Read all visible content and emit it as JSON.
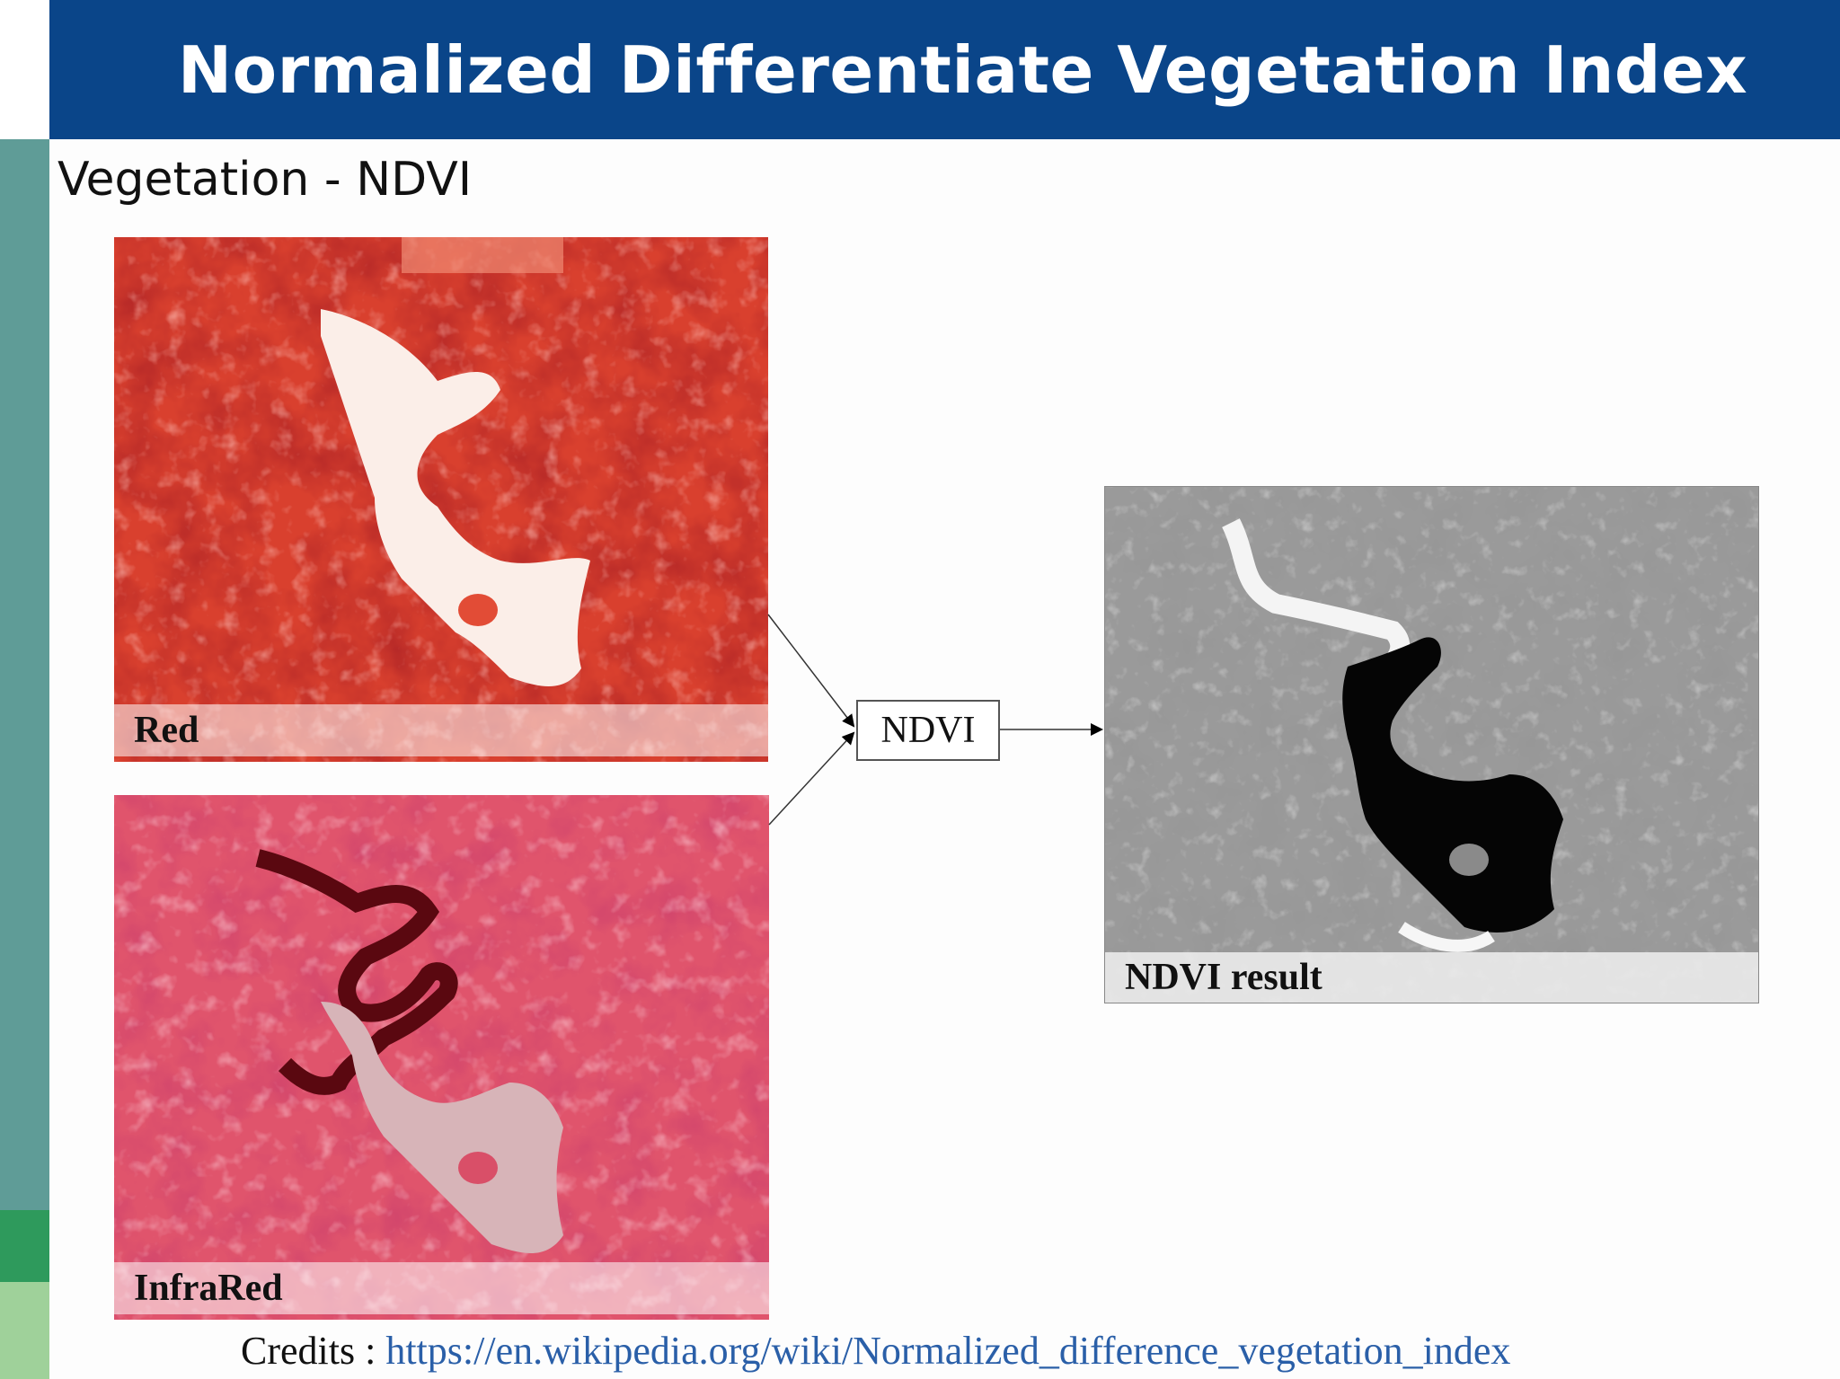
{
  "slide": {
    "title": "Normalized Differentiate Vegetation Index",
    "subtitle": "Vegetation - NDVI"
  },
  "panels": {
    "red": {
      "label": "Red"
    },
    "infrared": {
      "label": "InfraRed"
    },
    "result": {
      "label": "NDVI result"
    }
  },
  "process_node": {
    "label": "NDVI"
  },
  "credits": {
    "prefix": "Credits : ",
    "link_text": "https://en.wikipedia.org/wiki/Normalized_difference_vegetation_index"
  },
  "colors": {
    "banner": "#0a4589",
    "left_bar": "#5f9c97",
    "left_bar_accent": "#2e9a5c",
    "left_bar_light": "#9fd19a",
    "red_band": "#d8372a",
    "infrared_band": "#de4a64",
    "link": "#2a5fa8"
  }
}
